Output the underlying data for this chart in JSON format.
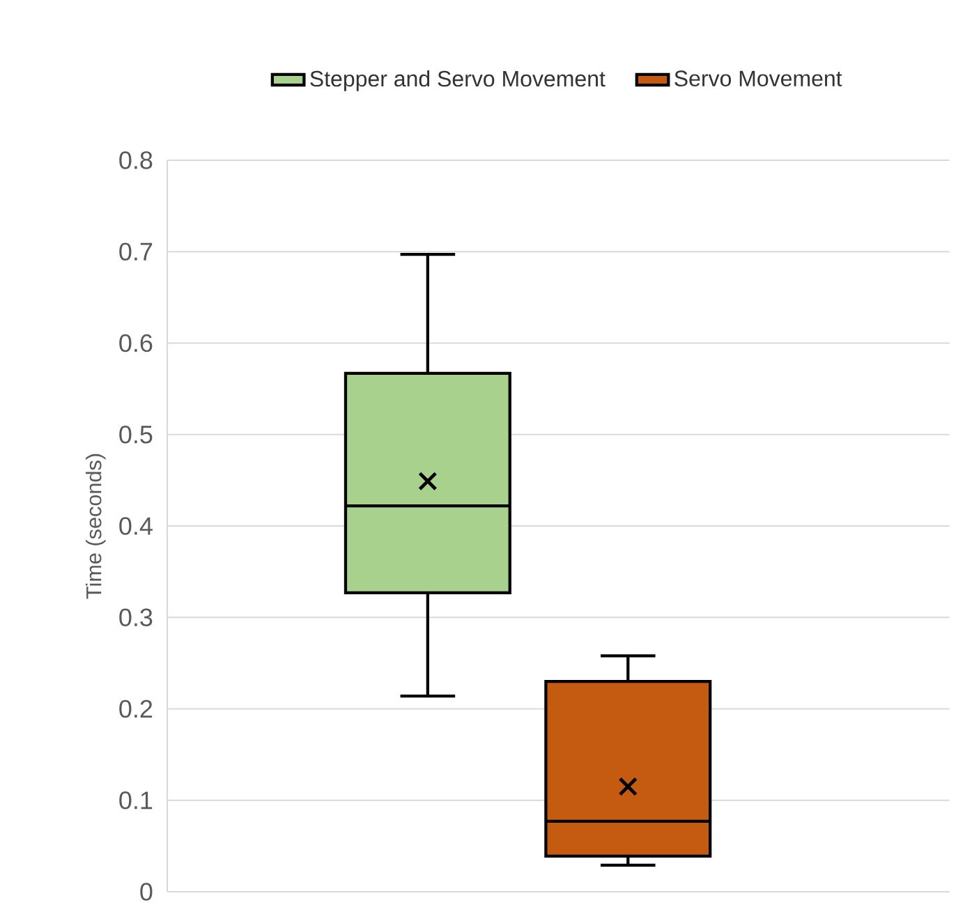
{
  "chart_data": {
    "type": "box",
    "ylabel": "Time (seconds)",
    "categories": [
      null
    ],
    "ylim": [
      0,
      0.8
    ],
    "yticks": [
      0,
      0.1,
      0.2,
      0.3,
      0.4,
      0.5,
      0.6,
      0.7,
      0.8
    ],
    "grid": "y",
    "legend": "top",
    "tick_labels": "y",
    "series": [
      {
        "name": "Stepper and Servo Movement",
        "color": "#a9d18e",
        "boxes": [
          {
            "low": 0.214,
            "q1": 0.327,
            "median": 0.422,
            "q3": 0.567,
            "high": 0.697,
            "mean": 0.449
          }
        ]
      },
      {
        "name": "Servo Movement",
        "color": "#c55a11",
        "boxes": [
          {
            "low": 0.029,
            "q1": 0.039,
            "median": 0.077,
            "q3": 0.23,
            "high": 0.258,
            "mean": 0.115
          }
        ]
      }
    ]
  }
}
